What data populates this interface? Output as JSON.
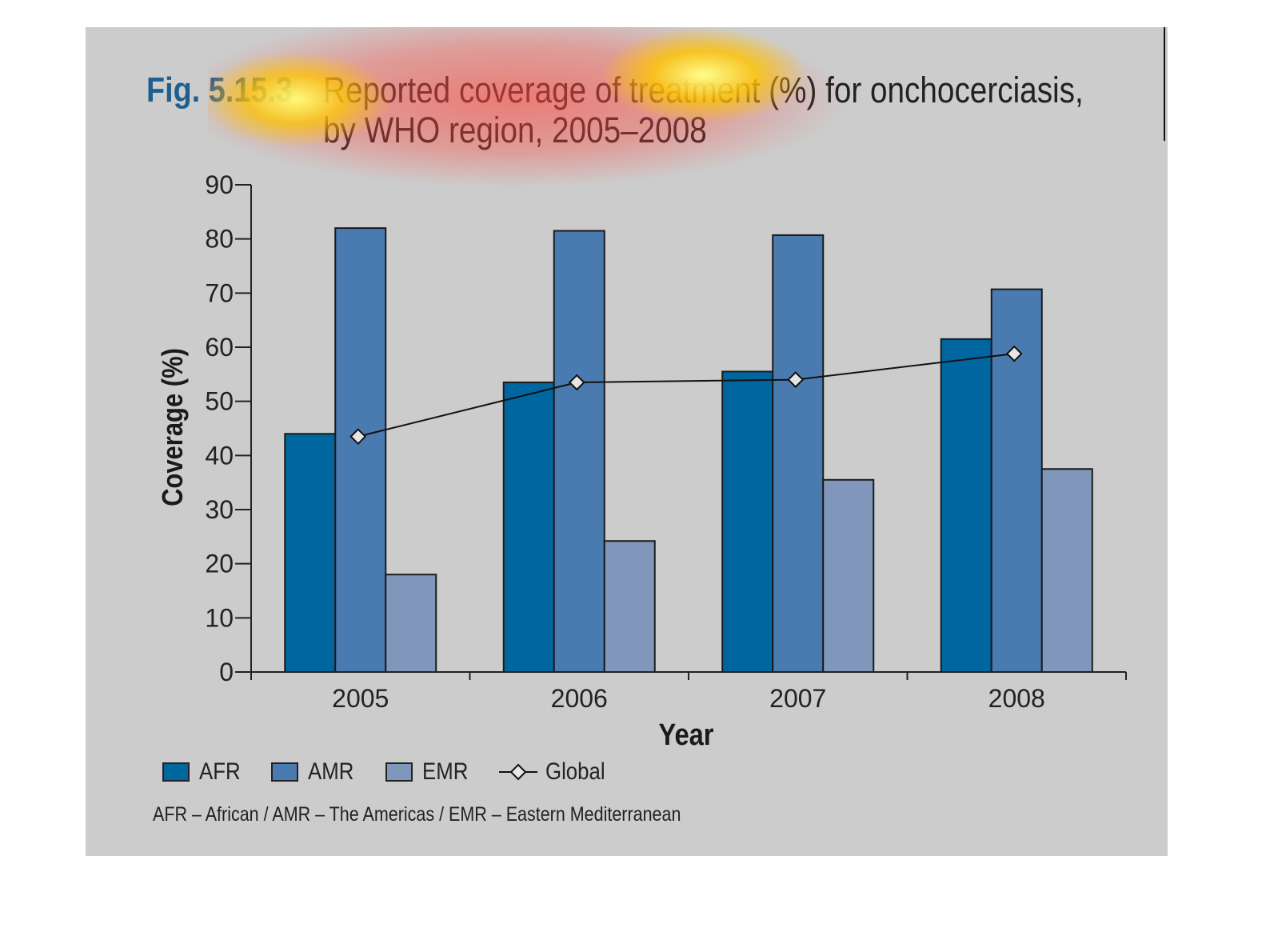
{
  "figure": {
    "number": "Fig. 5.15.3",
    "title_line1": "Reported coverage of treatment (%) for onchocerciasis,",
    "title_line2": "by WHO region, 2005–2008"
  },
  "chart_data": {
    "type": "bar",
    "title": "Reported coverage of treatment (%) for onchocerciasis, by WHO region, 2005–2008",
    "xlabel": "Year",
    "ylabel": "Coverage (%)",
    "ylim": [
      0,
      90
    ],
    "yticks": [
      0,
      10,
      20,
      30,
      40,
      50,
      60,
      70,
      80,
      90
    ],
    "categories": [
      "2005",
      "2006",
      "2007",
      "2008"
    ],
    "series": [
      {
        "name": "AFR",
        "type": "bar",
        "color": "#0066a0",
        "values": [
          44,
          53.5,
          55.5,
          61.5
        ]
      },
      {
        "name": "AMR",
        "type": "bar",
        "color": "#4a7bb0",
        "values": [
          82,
          81.5,
          80.7,
          70.7
        ]
      },
      {
        "name": "EMR",
        "type": "bar",
        "color": "#8097bb",
        "values": [
          18,
          24.2,
          35.5,
          37.5
        ]
      },
      {
        "name": "Global",
        "type": "line",
        "marker": "diamond",
        "color": "#111111",
        "values": [
          43.5,
          53.5,
          54,
          58.8
        ]
      }
    ],
    "legend": {
      "placement": "bottom-left"
    },
    "grid": false
  },
  "footnote": "AFR – African / AMR – The Americas / EMR – Eastern Mediterranean"
}
